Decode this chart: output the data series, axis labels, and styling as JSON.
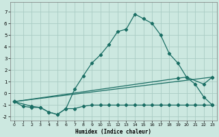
{
  "xlabel": "Humidex (Indice chaleur)",
  "background_color": "#cce8e0",
  "grid_color": "#aaccc4",
  "line_color": "#1a6e64",
  "xlim": [
    -0.5,
    23.5
  ],
  "ylim": [
    -2.3,
    7.8
  ],
  "yticks": [
    -2,
    -1,
    0,
    1,
    2,
    3,
    4,
    5,
    6,
    7
  ],
  "xticks": [
    0,
    1,
    2,
    3,
    4,
    5,
    6,
    7,
    8,
    9,
    10,
    11,
    12,
    13,
    14,
    15,
    16,
    17,
    18,
    19,
    20,
    21,
    22,
    23
  ],
  "series1_x": [
    0,
    1,
    2,
    3,
    4,
    5,
    6,
    7,
    8,
    9,
    10,
    11,
    12,
    13,
    14,
    15,
    16,
    17,
    18,
    19,
    20,
    21,
    22,
    23
  ],
  "series1_y": [
    -0.7,
    -1.1,
    -1.2,
    -1.2,
    -1.6,
    -1.8,
    -1.3,
    0.35,
    1.5,
    2.6,
    3.3,
    4.2,
    5.3,
    5.5,
    6.8,
    6.4,
    6.0,
    5.0,
    3.4,
    2.6,
    1.4,
    0.8,
    -0.3,
    -1.0
  ],
  "series2_x": [
    0,
    2,
    3,
    4,
    5,
    6,
    7,
    8,
    9,
    10,
    11,
    12,
    13,
    14,
    15,
    16,
    17,
    18,
    19,
    20,
    21,
    22,
    23
  ],
  "series2_y": [
    -0.7,
    -1.1,
    -1.2,
    -1.6,
    -1.8,
    -1.3,
    -1.3,
    -1.1,
    -1.0,
    -1.0,
    -1.0,
    -1.0,
    -1.0,
    -1.0,
    -1.0,
    -1.0,
    -1.0,
    -1.0,
    -1.0,
    -1.0,
    -1.0,
    -1.0,
    -1.0
  ],
  "series3_x": [
    0,
    23
  ],
  "series3_y": [
    -0.7,
    1.4
  ],
  "series4_x": [
    0,
    19,
    20,
    22,
    23
  ],
  "series4_y": [
    -0.7,
    1.3,
    1.4,
    0.8,
    1.4
  ]
}
